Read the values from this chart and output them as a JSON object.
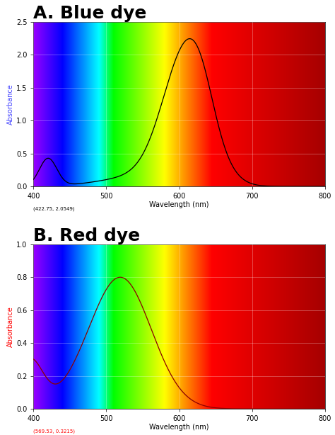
{
  "title_a": "A. Blue dye",
  "title_b": "B. Red dye",
  "xlabel": "Wavelength (nm)",
  "ylabel_a": "Absorbance",
  "ylabel_b": "Absorbance",
  "xlim": [
    400,
    800
  ],
  "ylim_a": [
    0.0,
    2.5
  ],
  "ylim_b": [
    0.0,
    1.0
  ],
  "xticks_a": [
    400,
    500,
    600,
    700,
    800
  ],
  "xticks_b": [
    400,
    500,
    600,
    700,
    800
  ],
  "yticks_a": [
    0.0,
    0.5,
    1.0,
    1.5,
    2.0,
    2.5
  ],
  "yticks_b": [
    0.0,
    0.2,
    0.4,
    0.6,
    0.8,
    1.0
  ],
  "annotation_a": "(422.75, 2.0549)",
  "annotation_b": "(569.53, 0.3215)",
  "line_color_a": "#000000",
  "line_color_b": "#8b0000",
  "ylabel_color_a": "#4444ff",
  "ylabel_color_b": "#ff0000",
  "background": "#ffffff",
  "figsize": [
    4.74,
    6.14
  ],
  "dpi": 100,
  "title_fontsize": 18,
  "tick_fontsize": 7,
  "label_fontsize": 7
}
